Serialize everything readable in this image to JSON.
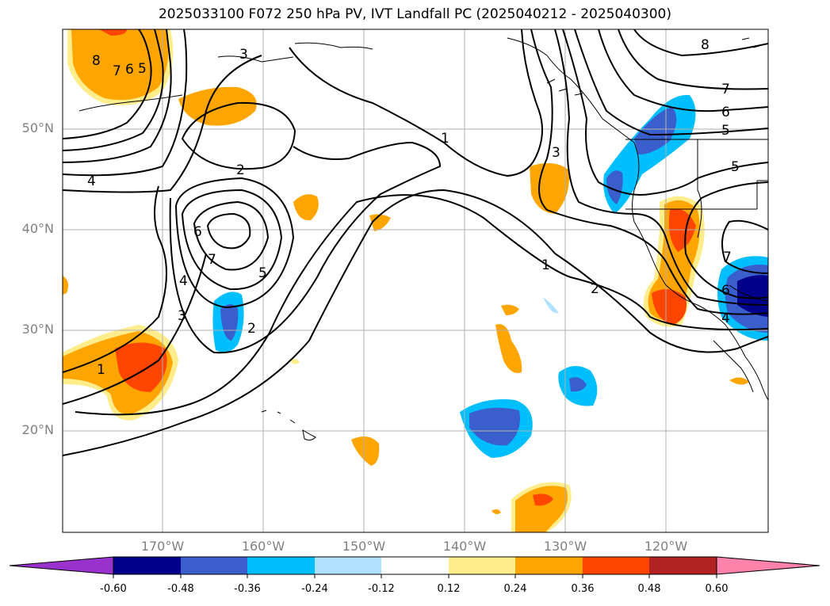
{
  "title": "2025033100 F072 250 hPa PV, IVT Landfall PC (2025040212 - 2025040300)",
  "lat_labels": [
    "50°N",
    "40°N",
    "30°N",
    "20°N"
  ],
  "lon_labels": [
    "170°W",
    "160°W",
    "150°W",
    "140°W",
    "130°W",
    "120°W"
  ],
  "contour_labels": [
    "8",
    "7",
    "6",
    "5",
    "3",
    "4",
    "2",
    "1",
    "6",
    "7",
    "5",
    "4",
    "3",
    "2",
    "1",
    "3",
    "1",
    "2",
    "8",
    "7",
    "6",
    "5",
    "5",
    "7",
    "6",
    "4"
  ],
  "colorbar": {
    "ticks": [
      "-0.60",
      "-0.48",
      "-0.36",
      "-0.24",
      "-0.12",
      "0.12",
      "0.24",
      "0.36",
      "0.48",
      "0.60"
    ],
    "colors": [
      "#9932cc",
      "#00008b",
      "#3a5fcd",
      "#00bfff",
      "#b0e2ff",
      "#ffffff",
      "#ffec8b",
      "#ffa500",
      "#ff4500",
      "#b22222",
      "#ff82ab"
    ]
  },
  "colors": {
    "contour": "#000000",
    "grid": "#b0b0b0",
    "coast": "#000000"
  }
}
